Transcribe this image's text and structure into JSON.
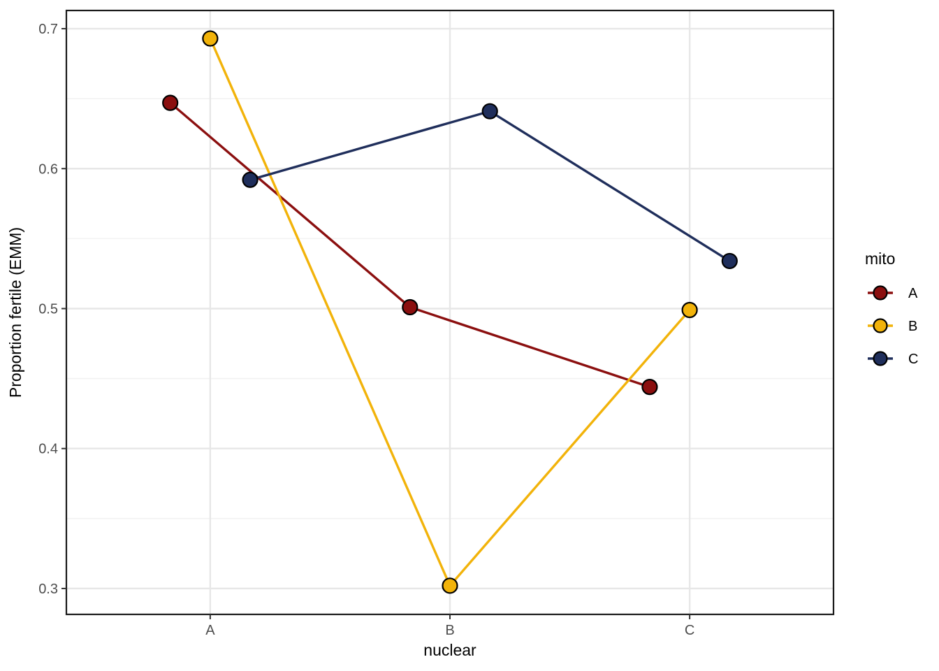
{
  "chart_data": {
    "type": "line",
    "title": "",
    "xlabel": "nuclear",
    "ylabel": "Proportion fertile (EMM)",
    "categories": [
      "A",
      "B",
      "C"
    ],
    "series": [
      {
        "name": "A",
        "color": "#8B0F0F",
        "values": [
          0.647,
          0.501,
          0.444
        ]
      },
      {
        "name": "B",
        "color": "#F2B30A",
        "values": [
          0.693,
          0.302,
          0.499
        ]
      },
      {
        "name": "C",
        "color": "#1F2E5B",
        "values": [
          0.592,
          0.641,
          0.534
        ]
      }
    ],
    "legend": {
      "title": "mito",
      "position": "right",
      "labels": [
        "A",
        "B",
        "C"
      ]
    },
    "y_ticks": [
      0.3,
      0.4,
      0.5,
      0.6,
      0.7
    ],
    "y_tick_labels": [
      "0.3",
      "0.4",
      "0.5",
      "0.6",
      "0.7"
    ],
    "y_minor_ticks": [
      0.35,
      0.45,
      0.55,
      0.65
    ],
    "ylim": [
      0.2815,
      0.713
    ],
    "grid": true,
    "dodge": 0.1667,
    "marker": "filled-circle-black-outline",
    "style": {
      "panel_background": "#FFFFFF",
      "panel_border": "#1A1A1A",
      "grid_major": "#E7E7E7",
      "grid_minor": "#F2F2F2",
      "tick_color": "#333333",
      "tick_label_color": "#4D4D4D",
      "title_color": "#000000",
      "point_stroke": "#000000"
    }
  }
}
